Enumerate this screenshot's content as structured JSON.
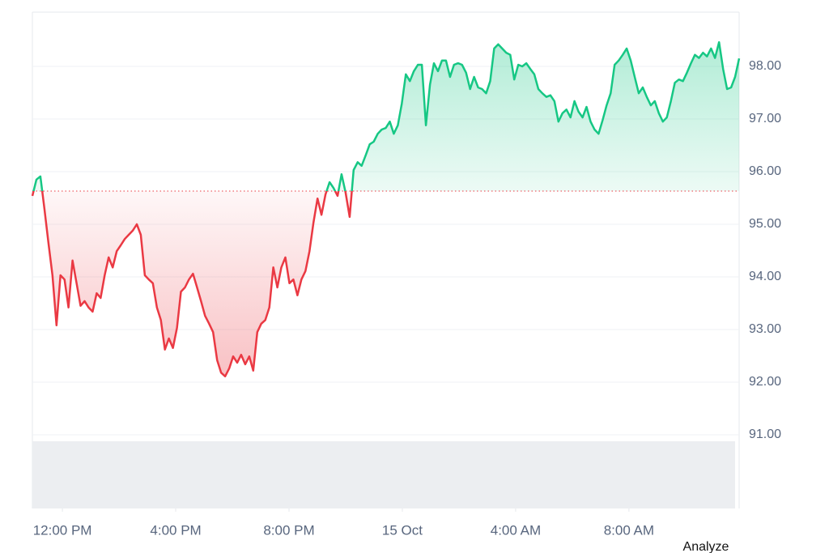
{
  "chart_data": {
    "type": "line",
    "xlim": [
      -1.06,
      23.89
    ],
    "xticks": [
      {
        "value": 0,
        "label": "12:00 PM"
      },
      {
        "value": 4,
        "label": "4:00 PM"
      },
      {
        "value": 8,
        "label": "8:00 PM"
      },
      {
        "value": 12,
        "label": "15 Oct"
      },
      {
        "value": 16,
        "label": "4:00 AM"
      },
      {
        "value": 20,
        "label": "8:00 AM"
      }
    ],
    "ylim": [
      90.8,
      99.0
    ],
    "yticks": [
      {
        "value": 91,
        "label": "91.00"
      },
      {
        "value": 92,
        "label": "92.00"
      },
      {
        "value": 93,
        "label": "93.00"
      },
      {
        "value": 94,
        "label": "94.00"
      },
      {
        "value": 95,
        "label": "95.00"
      },
      {
        "value": 96,
        "label": "96.00"
      },
      {
        "value": 97,
        "label": "97.00"
      },
      {
        "value": 98,
        "label": "98.00"
      }
    ],
    "grid": true,
    "baseline": 95.63,
    "up_color": "#16c784",
    "down_color": "#ea3943",
    "values": [
      95.54,
      95.85,
      95.91,
      95.29,
      94.65,
      94.03,
      93.08,
      94.03,
      93.95,
      93.42,
      94.31,
      93.88,
      93.45,
      93.54,
      93.42,
      93.34,
      93.69,
      93.6,
      94.03,
      94.37,
      94.18,
      94.49,
      94.6,
      94.72,
      94.8,
      94.88,
      95.0,
      94.8,
      94.03,
      93.95,
      93.88,
      93.42,
      93.18,
      92.62,
      92.83,
      92.65,
      93.03,
      93.72,
      93.8,
      93.95,
      94.06,
      93.8,
      93.54,
      93.26,
      93.11,
      92.95,
      92.42,
      92.18,
      92.11,
      92.26,
      92.49,
      92.37,
      92.52,
      92.34,
      92.49,
      92.22,
      92.95,
      93.11,
      93.18,
      93.42,
      94.18,
      93.8,
      94.18,
      94.37,
      93.88,
      93.95,
      93.65,
      93.95,
      94.11,
      94.49,
      95.03,
      95.49,
      95.18,
      95.57,
      95.8,
      95.69,
      95.54,
      95.95,
      95.6,
      95.14,
      96.03,
      96.18,
      96.11,
      96.31,
      96.52,
      96.57,
      96.72,
      96.8,
      96.83,
      96.95,
      96.72,
      96.88,
      97.29,
      97.85,
      97.72,
      97.91,
      98.03,
      98.03,
      96.88,
      97.65,
      98.06,
      97.91,
      98.11,
      98.11,
      97.8,
      98.03,
      98.06,
      98.03,
      97.88,
      97.57,
      97.8,
      97.6,
      97.57,
      97.49,
      97.72,
      98.34,
      98.42,
      98.34,
      98.26,
      98.22,
      97.75,
      98.03,
      98.0,
      98.06,
      97.95,
      97.85,
      97.57,
      97.49,
      97.42,
      97.45,
      97.34,
      96.95,
      97.11,
      97.18,
      97.03,
      97.34,
      97.14,
      97.03,
      97.23,
      96.95,
      96.8,
      96.72,
      96.98,
      97.26,
      97.49,
      98.03,
      98.11,
      98.22,
      98.34,
      98.11,
      97.8,
      97.49,
      97.6,
      97.42,
      97.26,
      97.34,
      97.11,
      96.95,
      97.03,
      97.34,
      97.69,
      97.75,
      97.72,
      97.88,
      98.06,
      98.22,
      98.16,
      98.26,
      98.19,
      98.34,
      98.16,
      98.46,
      97.95,
      97.57,
      97.6,
      97.8,
      98.15
    ]
  },
  "footer": {
    "button": "Analyze"
  }
}
